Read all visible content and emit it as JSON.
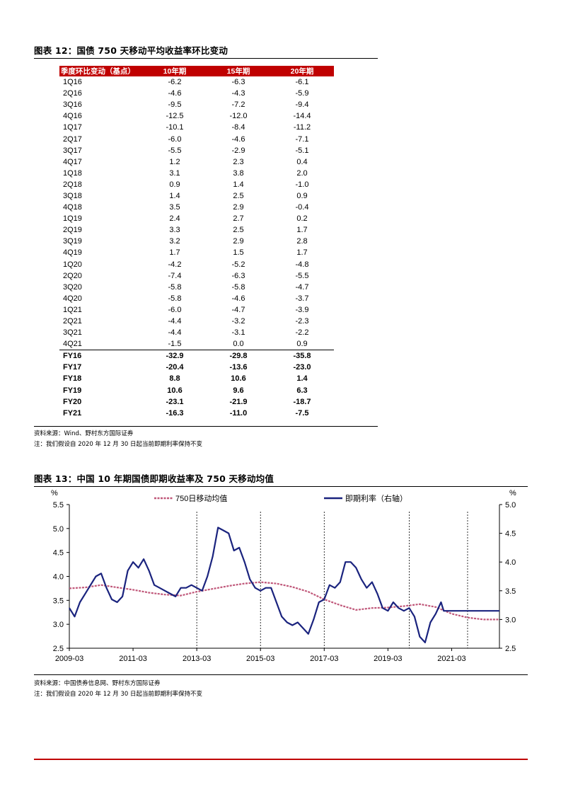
{
  "table1": {
    "title": "图表 12：国债 750 天移动平均收益率环比变动",
    "headers": [
      "季度环比变动（基点）",
      "10年期",
      "15年期",
      "20年期"
    ],
    "quarters": [
      [
        "1Q16",
        "-6.2",
        "-6.3",
        "-6.1"
      ],
      [
        "2Q16",
        "-4.6",
        "-4.3",
        "-5.9"
      ],
      [
        "3Q16",
        "-9.5",
        "-7.2",
        "-9.4"
      ],
      [
        "4Q16",
        "-12.5",
        "-12.0",
        "-14.4"
      ],
      [
        "1Q17",
        "-10.1",
        "-8.4",
        "-11.2"
      ],
      [
        "2Q17",
        "-6.0",
        "-4.6",
        "-7.1"
      ],
      [
        "3Q17",
        "-5.5",
        "-2.9",
        "-5.1"
      ],
      [
        "4Q17",
        "1.2",
        "2.3",
        "0.4"
      ],
      [
        "1Q18",
        "3.1",
        "3.8",
        "2.0"
      ],
      [
        "2Q18",
        "0.9",
        "1.4",
        "-1.0"
      ],
      [
        "3Q18",
        "1.4",
        "2.5",
        "0.9"
      ],
      [
        "4Q18",
        "3.5",
        "2.9",
        "-0.4"
      ],
      [
        "1Q19",
        "2.4",
        "2.7",
        "0.2"
      ],
      [
        "2Q19",
        "3.3",
        "2.5",
        "1.7"
      ],
      [
        "3Q19",
        "3.2",
        "2.9",
        "2.8"
      ],
      [
        "4Q19",
        "1.7",
        "1.5",
        "1.7"
      ],
      [
        "1Q20",
        "-4.2",
        "-5.2",
        "-4.8"
      ],
      [
        "2Q20",
        "-7.4",
        "-6.3",
        "-5.5"
      ],
      [
        "3Q20",
        "-5.8",
        "-5.8",
        "-4.7"
      ],
      [
        "4Q20",
        "-5.8",
        "-4.6",
        "-3.7"
      ],
      [
        "1Q21",
        "-6.0",
        "-4.7",
        "-3.9"
      ],
      [
        "2Q21",
        "-4.4",
        "-3.2",
        "-2.3"
      ],
      [
        "3Q21",
        "-4.4",
        "-3.1",
        "-2.2"
      ],
      [
        "4Q21",
        "-1.5",
        "0.0",
        "0.9"
      ]
    ],
    "fiscal_years": [
      [
        "FY16",
        "-32.9",
        "-29.8",
        "-35.8"
      ],
      [
        "FY17",
        "-20.4",
        "-13.6",
        "-23.0"
      ],
      [
        "FY18",
        "8.8",
        "10.6",
        "1.4"
      ],
      [
        "FY19",
        "10.6",
        "9.6",
        "6.3"
      ],
      [
        "FY20",
        "-23.1",
        "-21.9",
        "-18.7"
      ],
      [
        "FY21",
        "-16.3",
        "-11.0",
        "-7.5"
      ]
    ],
    "source": "资料来源：Wind、野村东方国际证券",
    "note": "注：我们假设自 2020 年 12 月 30 日起当前即期利率保持不变"
  },
  "chart": {
    "title": "图表 13：中国 10 年期国债即期收益率及 750 天移动均值",
    "source": "资料来源：中国债券信息网、野村东方国际证券",
    "note": "注：我们假设自 2020 年 12 月 30 日起当前即期利率保持不变"
  },
  "chart_data": {
    "type": "line",
    "title": "",
    "x_ticks": [
      "2009-03",
      "2011-03",
      "2013-03",
      "2015-03",
      "2017-03",
      "2019-03",
      "2021-03"
    ],
    "xlim": [
      "2009-03",
      "2022-09"
    ],
    "left_axis": {
      "unit": "%",
      "ticks": [
        "5.5",
        "5.0",
        "4.5",
        "4.0",
        "3.5",
        "3.0",
        "2.5"
      ],
      "ylim": [
        2.5,
        5.5
      ]
    },
    "right_axis": {
      "unit": "%",
      "ticks": [
        "5.0",
        "4.5",
        "4.0",
        "3.5",
        "3.0",
        "2.5"
      ],
      "ylim": [
        2.5,
        5.0
      ]
    },
    "legend_position": "top",
    "vertical_dashed_lines_at": [
      "2013-03",
      "2015-03",
      "2017-03",
      "2019-11",
      "2021-09"
    ],
    "series": [
      {
        "name": "750日移动均值",
        "axis": "left",
        "color": "#c0587a",
        "style": "dashed",
        "points": [
          [
            "2009-03",
            3.75
          ],
          [
            "2009-09",
            3.77
          ],
          [
            "2010-03",
            3.82
          ],
          [
            "2010-09",
            3.77
          ],
          [
            "2011-03",
            3.72
          ],
          [
            "2011-09",
            3.66
          ],
          [
            "2012-03",
            3.62
          ],
          [
            "2012-09",
            3.6
          ],
          [
            "2013-03",
            3.68
          ],
          [
            "2013-09",
            3.74
          ],
          [
            "2014-03",
            3.8
          ],
          [
            "2014-09",
            3.85
          ],
          [
            "2015-03",
            3.88
          ],
          [
            "2015-09",
            3.85
          ],
          [
            "2016-03",
            3.78
          ],
          [
            "2016-09",
            3.68
          ],
          [
            "2017-03",
            3.52
          ],
          [
            "2017-09",
            3.4
          ],
          [
            "2018-03",
            3.3
          ],
          [
            "2018-09",
            3.34
          ],
          [
            "2019-03",
            3.35
          ],
          [
            "2019-09",
            3.38
          ],
          [
            "2020-03",
            3.42
          ],
          [
            "2020-09",
            3.36
          ],
          [
            "2021-03",
            3.22
          ],
          [
            "2021-09",
            3.14
          ],
          [
            "2022-03",
            3.1
          ],
          [
            "2022-09",
            3.1
          ]
        ]
      },
      {
        "name": "即期利率（右轴）",
        "axis": "right",
        "color": "#1a237e",
        "style": "solid",
        "points": [
          [
            "2009-03",
            3.2
          ],
          [
            "2009-05",
            3.05
          ],
          [
            "2009-07",
            3.3
          ],
          [
            "2009-09",
            3.45
          ],
          [
            "2009-11",
            3.6
          ],
          [
            "2010-01",
            3.75
          ],
          [
            "2010-03",
            3.8
          ],
          [
            "2010-05",
            3.55
          ],
          [
            "2010-07",
            3.35
          ],
          [
            "2010-09",
            3.3
          ],
          [
            "2010-11",
            3.4
          ],
          [
            "2011-01",
            3.85
          ],
          [
            "2011-03",
            4.0
          ],
          [
            "2011-05",
            3.9
          ],
          [
            "2011-07",
            4.05
          ],
          [
            "2011-09",
            3.85
          ],
          [
            "2011-11",
            3.6
          ],
          [
            "2012-01",
            3.55
          ],
          [
            "2012-03",
            3.5
          ],
          [
            "2012-05",
            3.45
          ],
          [
            "2012-07",
            3.4
          ],
          [
            "2012-09",
            3.55
          ],
          [
            "2012-11",
            3.55
          ],
          [
            "2013-01",
            3.6
          ],
          [
            "2013-03",
            3.55
          ],
          [
            "2013-05",
            3.5
          ],
          [
            "2013-07",
            3.75
          ],
          [
            "2013-09",
            4.1
          ],
          [
            "2013-11",
            4.6
          ],
          [
            "2014-01",
            4.55
          ],
          [
            "2014-03",
            4.5
          ],
          [
            "2014-05",
            4.2
          ],
          [
            "2014-07",
            4.25
          ],
          [
            "2014-09",
            4.0
          ],
          [
            "2014-11",
            3.7
          ],
          [
            "2015-01",
            3.55
          ],
          [
            "2015-03",
            3.5
          ],
          [
            "2015-05",
            3.55
          ],
          [
            "2015-07",
            3.55
          ],
          [
            "2015-09",
            3.3
          ],
          [
            "2015-11",
            3.05
          ],
          [
            "2016-01",
            2.95
          ],
          [
            "2016-03",
            2.9
          ],
          [
            "2016-05",
            2.95
          ],
          [
            "2016-07",
            2.85
          ],
          [
            "2016-09",
            2.75
          ],
          [
            "2016-11",
            3.0
          ],
          [
            "2017-01",
            3.3
          ],
          [
            "2017-03",
            3.35
          ],
          [
            "2017-05",
            3.6
          ],
          [
            "2017-07",
            3.55
          ],
          [
            "2017-09",
            3.65
          ],
          [
            "2017-11",
            4.0
          ],
          [
            "2018-01",
            4.0
          ],
          [
            "2018-03",
            3.9
          ],
          [
            "2018-05",
            3.7
          ],
          [
            "2018-07",
            3.55
          ],
          [
            "2018-09",
            3.65
          ],
          [
            "2018-11",
            3.45
          ],
          [
            "2019-01",
            3.2
          ],
          [
            "2019-03",
            3.15
          ],
          [
            "2019-05",
            3.3
          ],
          [
            "2019-07",
            3.2
          ],
          [
            "2019-09",
            3.15
          ],
          [
            "2019-11",
            3.2
          ],
          [
            "2020-01",
            3.05
          ],
          [
            "2020-03",
            2.7
          ],
          [
            "2020-05",
            2.6
          ],
          [
            "2020-07",
            2.95
          ],
          [
            "2020-09",
            3.1
          ],
          [
            "2020-11",
            3.3
          ],
          [
            "2020-12",
            3.15
          ],
          [
            "2022-09",
            3.15
          ]
        ]
      }
    ]
  }
}
